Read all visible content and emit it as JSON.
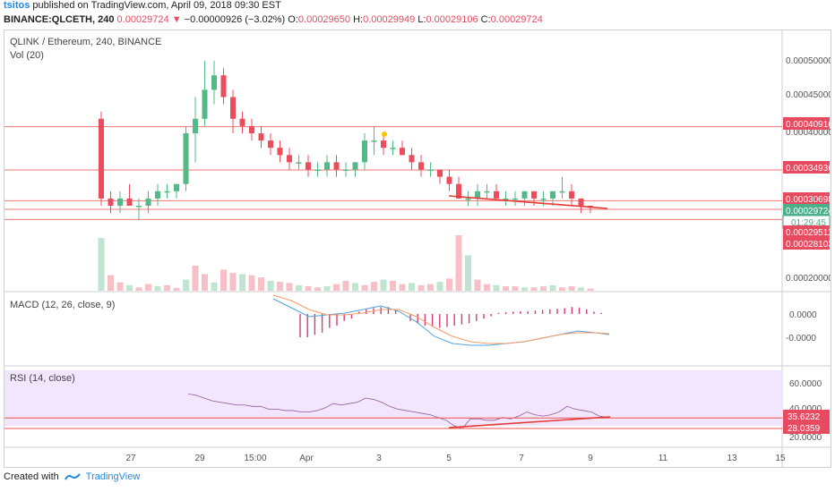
{
  "header": {
    "user": "tsitos",
    "published_text": "published on TradingView.com, April 09, 2018 09:30 EST",
    "symbol": "BINANCE:QLCETH, 240",
    "last": "0.00029724",
    "change_arrow": "▼",
    "change": "−0.00000926 (−3.02%)",
    "o_label": "O:",
    "o": "0.00029650",
    "h_label": "H:",
    "h": "0.00029949",
    "l_label": "L:",
    "l": "0.00029106",
    "c_label": "C:",
    "c": "0.00029724"
  },
  "main_pane": {
    "title": "QLINK / Ethereum, 240, BINANCE",
    "vol_label": "Vol (20)"
  },
  "macd_pane": {
    "title": "MACD (12, 26, close, 9)"
  },
  "rsi_pane": {
    "title": "RSI (14, close)"
  },
  "price_axis": {
    "ticks": [
      "0.00050000",
      "0.00045000",
      "0.00040000",
      "0.00020000"
    ]
  },
  "price_tags": [
    {
      "text": "0.00040916",
      "color": "#e84a5f"
    },
    {
      "text": "0.00034936",
      "color": "#e84a5f"
    },
    {
      "text": "0.00030698",
      "color": "#e84a5f"
    },
    {
      "text": "0.00029724",
      "color": "#4caf8a"
    },
    {
      "text": "01:29:45",
      "color": "#ffffff"
    },
    {
      "text": "0.00029511",
      "color": "#e84a5f"
    },
    {
      "text": "0.00028103",
      "color": "#e84a5f"
    }
  ],
  "macd_axis": {
    "ticks": [
      "0.0000",
      "-0.0000"
    ]
  },
  "rsi_axis": {
    "ticks": [
      "60.0000",
      "40.0000",
      "20.0000"
    ],
    "tags": [
      {
        "text": "35.6232",
        "color": "#e84a5f"
      },
      {
        "text": "28.0359",
        "color": "#e84a5f"
      }
    ]
  },
  "time_axis": {
    "ticks": [
      "27",
      "29",
      "15:00",
      "Apr",
      "3",
      "5",
      "7",
      "9",
      "11",
      "13",
      "15"
    ]
  },
  "footer": {
    "created_with": "Created with",
    "brand": "TradingView"
  },
  "colors": {
    "up": "#53b987",
    "down": "#eb4d5c",
    "hline": "#ef5350",
    "trend": "#e53935",
    "rsi_band": "#f1e6fd",
    "macd_line": "#4fa3e0",
    "signal": "#f59d63"
  },
  "chart_data": {
    "type": "candlestick",
    "series": [
      {
        "name": "price",
        "points": [
          {
            "o": 0.00042,
            "h": 0.00043,
            "l": 0.0003,
            "c": 0.00031
          },
          {
            "o": 0.00031,
            "h": 0.00032,
            "l": 0.00029,
            "c": 0.0003
          },
          {
            "o": 0.0003,
            "h": 0.00032,
            "l": 0.00029,
            "c": 0.00031
          },
          {
            "o": 0.00031,
            "h": 0.00033,
            "l": 0.0003,
            "c": 0.0003
          },
          {
            "o": 0.0003,
            "h": 0.00031,
            "l": 0.00028,
            "c": 0.0003
          },
          {
            "o": 0.0003,
            "h": 0.00032,
            "l": 0.00029,
            "c": 0.00031
          },
          {
            "o": 0.00031,
            "h": 0.00033,
            "l": 0.0003,
            "c": 0.00032
          },
          {
            "o": 0.00032,
            "h": 0.00033,
            "l": 0.00031,
            "c": 0.00032
          },
          {
            "o": 0.00032,
            "h": 0.00033,
            "l": 0.00031,
            "c": 0.00033
          },
          {
            "o": 0.00033,
            "h": 0.00041,
            "l": 0.00032,
            "c": 0.0004
          },
          {
            "o": 0.0004,
            "h": 0.00045,
            "l": 0.00036,
            "c": 0.00042
          },
          {
            "o": 0.00042,
            "h": 0.0005,
            "l": 0.00041,
            "c": 0.00046
          },
          {
            "o": 0.00046,
            "h": 0.0005,
            "l": 0.00044,
            "c": 0.00048
          },
          {
            "o": 0.00048,
            "h": 0.00049,
            "l": 0.00044,
            "c": 0.00045
          },
          {
            "o": 0.00045,
            "h": 0.00046,
            "l": 0.0004,
            "c": 0.00042
          },
          {
            "o": 0.00042,
            "h": 0.00043,
            "l": 0.0004,
            "c": 0.00041
          },
          {
            "o": 0.00041,
            "h": 0.00042,
            "l": 0.00039,
            "c": 0.0004
          },
          {
            "o": 0.0004,
            "h": 0.00041,
            "l": 0.00038,
            "c": 0.00039
          },
          {
            "o": 0.00039,
            "h": 0.0004,
            "l": 0.00037,
            "c": 0.00038
          },
          {
            "o": 0.00038,
            "h": 0.00039,
            "l": 0.00036,
            "c": 0.00037
          },
          {
            "o": 0.00037,
            "h": 0.00038,
            "l": 0.00035,
            "c": 0.00036
          },
          {
            "o": 0.00036,
            "h": 0.00037,
            "l": 0.00035,
            "c": 0.00036
          },
          {
            "o": 0.00036,
            "h": 0.00037,
            "l": 0.00034,
            "c": 0.00035
          },
          {
            "o": 0.00035,
            "h": 0.00036,
            "l": 0.00034,
            "c": 0.00035
          },
          {
            "o": 0.00035,
            "h": 0.00037,
            "l": 0.00034,
            "c": 0.00036
          },
          {
            "o": 0.00036,
            "h": 0.00037,
            "l": 0.00034,
            "c": 0.00035
          },
          {
            "o": 0.00035,
            "h": 0.00036,
            "l": 0.00034,
            "c": 0.00035
          },
          {
            "o": 0.00035,
            "h": 0.00036,
            "l": 0.00034,
            "c": 0.00036
          },
          {
            "o": 0.00036,
            "h": 0.0004,
            "l": 0.00035,
            "c": 0.00039
          },
          {
            "o": 0.00039,
            "h": 0.00041,
            "l": 0.00037,
            "c": 0.00039
          },
          {
            "o": 0.00039,
            "h": 0.0004,
            "l": 0.00037,
            "c": 0.00038
          },
          {
            "o": 0.00038,
            "h": 0.00039,
            "l": 0.00037,
            "c": 0.00038
          },
          {
            "o": 0.00038,
            "h": 0.00039,
            "l": 0.00037,
            "c": 0.00037
          },
          {
            "o": 0.00037,
            "h": 0.00038,
            "l": 0.00035,
            "c": 0.00036
          },
          {
            "o": 0.00036,
            "h": 0.00037,
            "l": 0.00034,
            "c": 0.00035
          },
          {
            "o": 0.00035,
            "h": 0.00036,
            "l": 0.00034,
            "c": 0.00035
          },
          {
            "o": 0.00035,
            "h": 0.00035,
            "l": 0.00033,
            "c": 0.00034
          },
          {
            "o": 0.00034,
            "h": 0.00035,
            "l": 0.00032,
            "c": 0.00033
          },
          {
            "o": 0.00033,
            "h": 0.00034,
            "l": 0.00031,
            "c": 0.00031
          },
          {
            "o": 0.00031,
            "h": 0.00032,
            "l": 0.0003,
            "c": 0.00031
          },
          {
            "o": 0.00031,
            "h": 0.00033,
            "l": 0.0003,
            "c": 0.00032
          },
          {
            "o": 0.00032,
            "h": 0.00033,
            "l": 0.00031,
            "c": 0.00032
          },
          {
            "o": 0.00032,
            "h": 0.00033,
            "l": 0.00031,
            "c": 0.00031
          },
          {
            "o": 0.00031,
            "h": 0.00032,
            "l": 0.0003,
            "c": 0.00031
          },
          {
            "o": 0.00031,
            "h": 0.00032,
            "l": 0.0003,
            "c": 0.00031
          },
          {
            "o": 0.00031,
            "h": 0.00032,
            "l": 0.0003,
            "c": 0.00032
          },
          {
            "o": 0.00032,
            "h": 0.00032,
            "l": 0.0003,
            "c": 0.00031
          },
          {
            "o": 0.00031,
            "h": 0.00032,
            "l": 0.0003,
            "c": 0.00031
          },
          {
            "o": 0.00031,
            "h": 0.00032,
            "l": 0.0003,
            "c": 0.00032
          },
          {
            "o": 0.00032,
            "h": 0.00034,
            "l": 0.00031,
            "c": 0.00032
          },
          {
            "o": 0.00032,
            "h": 0.00033,
            "l": 0.0003,
            "c": 0.00031
          },
          {
            "o": 0.00031,
            "h": 0.00031,
            "l": 0.00029,
            "c": 0.0003
          },
          {
            "o": 0.0003,
            "h": 0.0003,
            "l": 0.00029,
            "c": 0.00029724
          }
        ]
      }
    ],
    "volume": [
      95,
      28,
      15,
      10,
      6,
      12,
      8,
      10,
      5,
      20,
      45,
      30,
      15,
      38,
      32,
      30,
      28,
      24,
      18,
      16,
      14,
      10,
      8,
      6,
      8,
      12,
      18,
      14,
      10,
      16,
      20,
      18,
      12,
      14,
      10,
      12,
      16,
      22,
      100,
      64,
      20,
      12,
      10,
      8,
      8,
      6,
      6,
      8,
      10,
      6,
      8,
      6,
      4
    ],
    "macd_hist": [
      -1.0,
      -1.0,
      -0.9,
      -0.8,
      -0.6,
      -0.5,
      -0.3,
      -0.2,
      0.1,
      0.2,
      0.25,
      0.3,
      0.3,
      0.2,
      0.0,
      -0.3,
      -0.4,
      -0.5,
      -0.55,
      -0.6,
      -0.55,
      -0.5,
      -0.45,
      -0.4,
      -0.3,
      -0.2,
      -0.1,
      0.05,
      0.08,
      0.1,
      0.12,
      0.12,
      0.15,
      0.18,
      0.2,
      0.22,
      0.25,
      0.3,
      0.28,
      0.2,
      0.1,
      0.05
    ],
    "rsi": [
      53,
      52,
      50,
      48,
      47,
      46,
      45,
      45,
      44,
      44,
      42,
      42,
      41,
      41,
      40,
      40,
      41,
      43,
      46,
      45,
      46,
      47,
      50,
      49,
      47,
      44,
      42,
      41,
      40,
      39,
      38,
      36,
      34,
      30,
      28,
      35,
      35,
      34,
      34,
      36,
      35,
      37,
      40,
      38,
      37,
      38,
      40,
      44,
      42,
      41,
      40,
      37,
      36
    ],
    "rsi_band": [
      30,
      70
    ],
    "horizontal_levels": [
      "0.00040916",
      "0.00034936",
      "0.00030698",
      "0.00029511",
      "0.00028103"
    ],
    "time_labels": [
      "27",
      "29",
      "15:00",
      "Apr",
      "3",
      "5",
      "7",
      "9",
      "11",
      "13",
      "15"
    ]
  }
}
